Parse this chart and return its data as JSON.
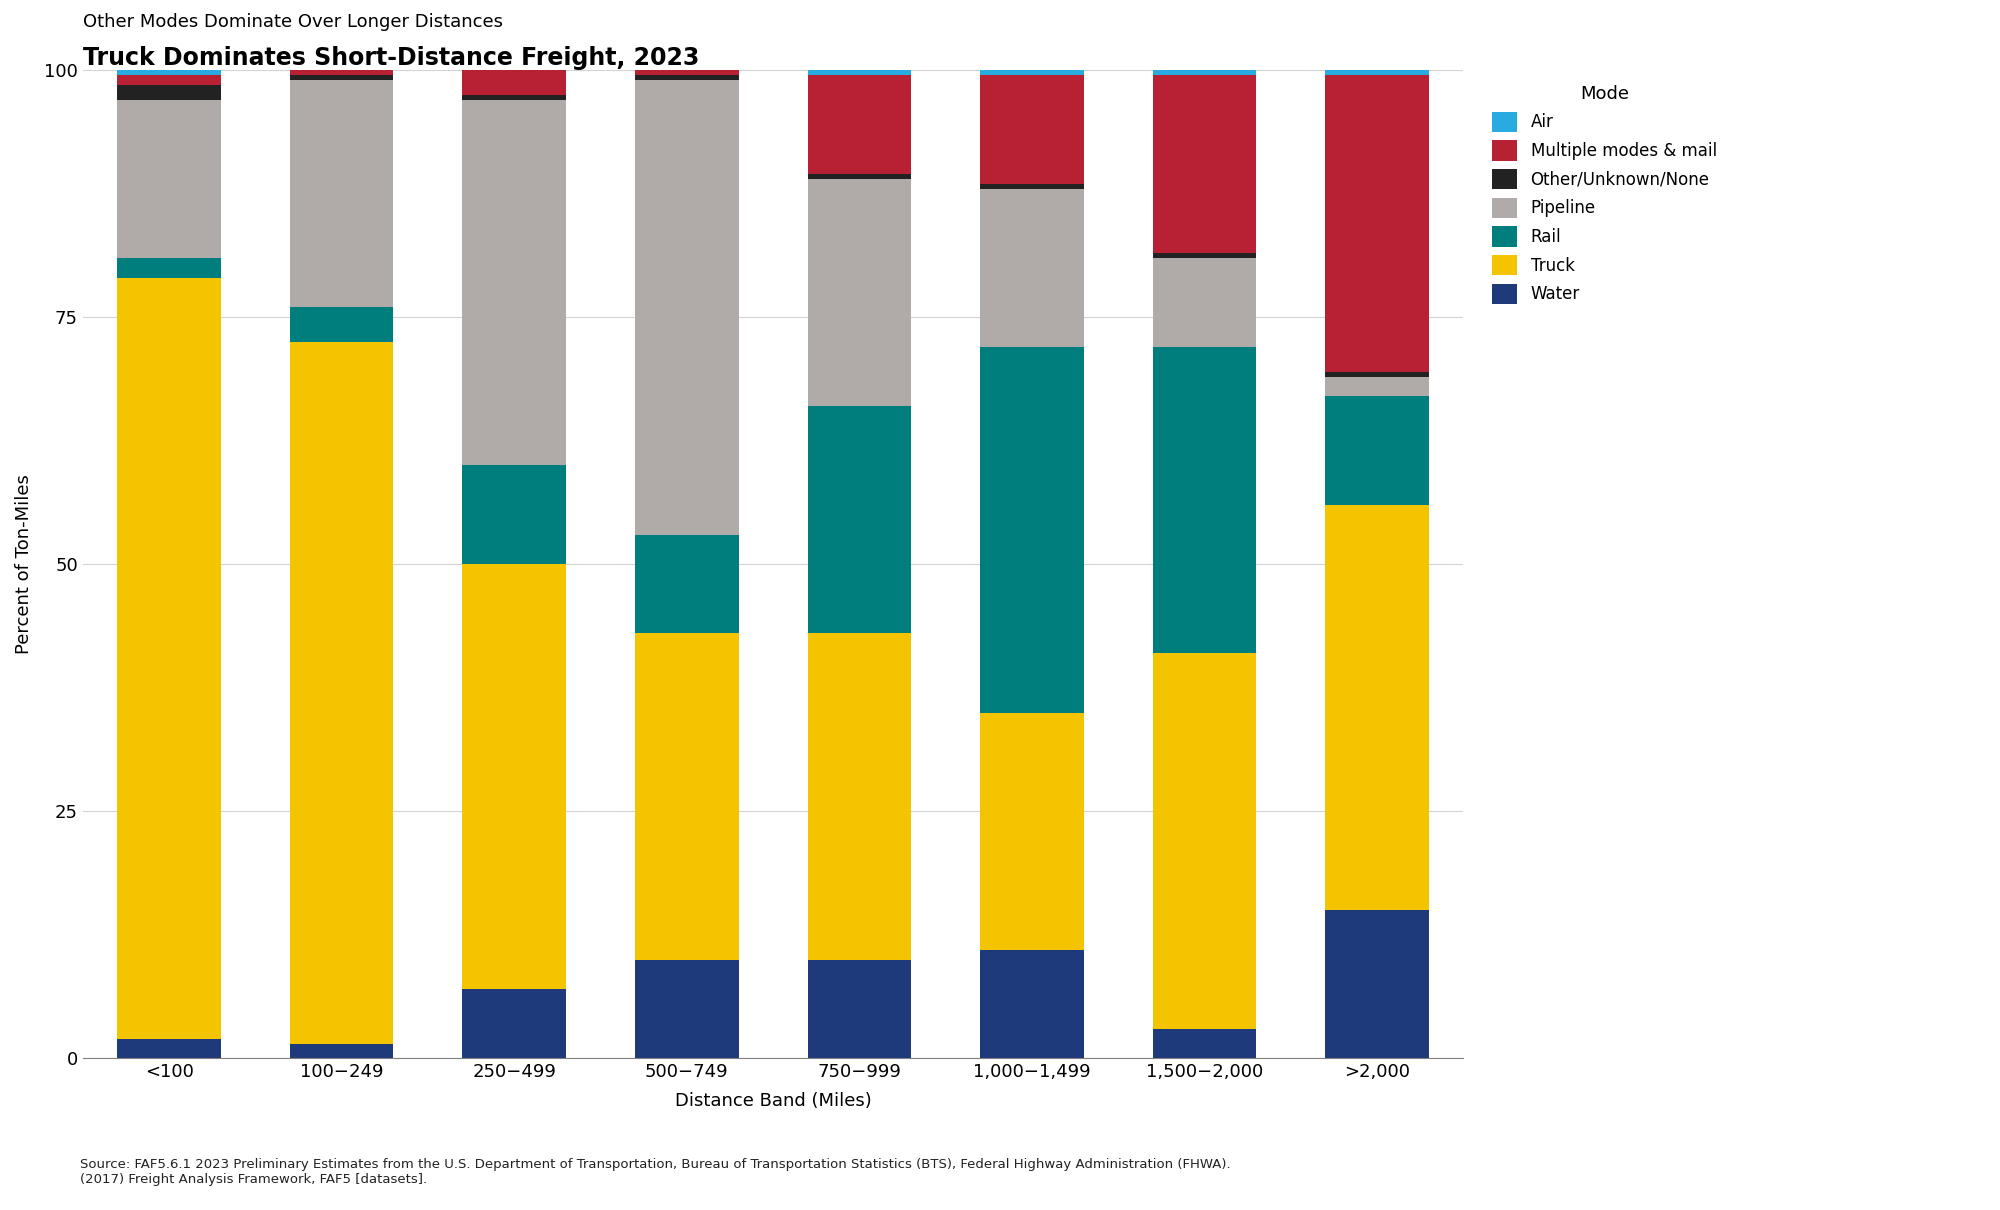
{
  "title": "Truck Dominates Short-Distance Freight, 2023",
  "subtitle": "Other Modes Dominate Over Longer Distances",
  "xlabel": "Distance Band (Miles)",
  "ylabel": "Percent of Ton-Miles",
  "source": "Source: FAF5.6.1 2023 Preliminary Estimates from the U.S. Department of Transportation, Bureau of Transportation Statistics (BTS), Federal Highway Administration (FHWA).\n(2017) Freight Analysis Framework, FAF5 [datasets].",
  "categories": [
    "<100",
    "100−249",
    "250−499",
    "500−749",
    "750−999",
    "1,000−1,499",
    "1,500−2,000",
    ">2,000"
  ],
  "modes": [
    "Water",
    "Truck",
    "Rail",
    "Pipeline",
    "Other/Unknown/None",
    "Multiple modes & mail",
    "Air"
  ],
  "colors": {
    "Water": "#1f3a7a",
    "Truck": "#f5c400",
    "Rail": "#007d7d",
    "Pipeline": "#b0aba8",
    "Other/Unknown/None": "#222222",
    "Multiple modes & mail": "#b82033",
    "Air": "#29abe2"
  },
  "data": {
    "Water": [
      2.0,
      1.5,
      7.0,
      10.0,
      10.0,
      11.0,
      3.0,
      15.0
    ],
    "Truck": [
      77.0,
      71.0,
      43.0,
      33.0,
      33.0,
      24.0,
      38.0,
      41.0
    ],
    "Rail": [
      2.0,
      3.5,
      10.0,
      10.0,
      23.0,
      37.0,
      31.0,
      11.0
    ],
    "Pipeline": [
      16.0,
      23.0,
      37.0,
      46.0,
      23.0,
      16.0,
      9.0,
      2.0
    ],
    "Other/Unknown/None": [
      1.5,
      0.5,
      0.5,
      0.5,
      0.5,
      0.5,
      0.5,
      0.5
    ],
    "Multiple modes & mail": [
      1.0,
      0.5,
      2.5,
      0.5,
      10.0,
      11.0,
      18.0,
      30.0
    ],
    "Air": [
      0.5,
      0.0,
      0.0,
      0.0,
      0.5,
      0.5,
      0.5,
      0.5
    ]
  },
  "ylim": [
    0,
    100
  ],
  "legend_title": "Mode",
  "figsize": [
    20.0,
    12.1
  ],
  "dpi": 100
}
